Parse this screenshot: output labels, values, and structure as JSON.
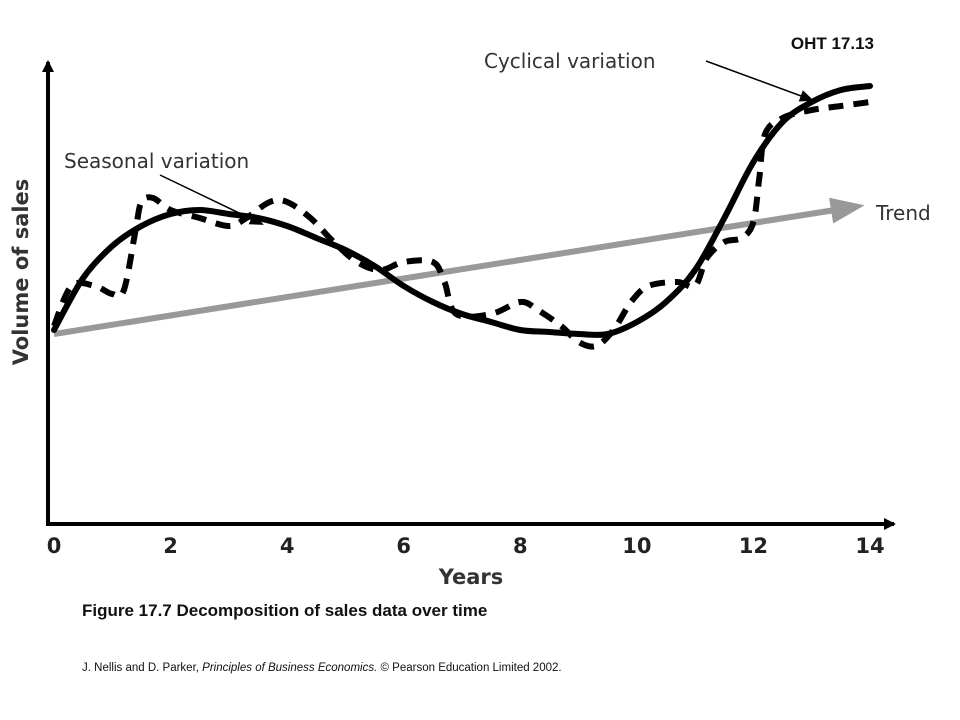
{
  "slide_id": "OHT 17.13",
  "caption": "Figure 17.7  Decomposition of sales data over time",
  "source": {
    "authors": "J. Nellis and D. Parker, ",
    "book": "Principles of Business Economics.",
    "copyright": "  © Pearson Education Limited 2002."
  },
  "chart_data": {
    "type": "line",
    "xlabel": "Years",
    "ylabel": "Volume of sales",
    "xlim": [
      0,
      14
    ],
    "ylim": [
      0,
      10
    ],
    "x_ticks": [
      "0",
      "2",
      "4",
      "6",
      "8",
      "10",
      "12",
      "14"
    ],
    "grid": false,
    "annotations": [
      {
        "text": "Cyclical variation",
        "target": "cyclical"
      },
      {
        "text": "Seasonal variation",
        "target": "seasonal"
      },
      {
        "text": "Trend",
        "target": "trend"
      }
    ],
    "series": [
      {
        "key": "trend",
        "color": "#999999",
        "style": "solid-arrow",
        "x": [
          0,
          13.4
        ],
        "y": [
          3.4,
          6.5
        ]
      },
      {
        "key": "cyclical",
        "color": "#000000",
        "style": "solid",
        "x": [
          0,
          0.5,
          1,
          1.5,
          2,
          2.5,
          3,
          3.5,
          4,
          4.5,
          5,
          5.5,
          6,
          6.5,
          7,
          7.5,
          8,
          8.5,
          9,
          9.5,
          10,
          10.5,
          11,
          11.5,
          12,
          12.5,
          13,
          13.5,
          14
        ],
        "y": [
          3.5,
          4.8,
          5.6,
          6.1,
          6.4,
          6.5,
          6.4,
          6.3,
          6.1,
          5.8,
          5.5,
          5.1,
          4.6,
          4.2,
          3.9,
          3.7,
          3.5,
          3.45,
          3.4,
          3.4,
          3.7,
          4.2,
          5.0,
          6.3,
          7.7,
          8.7,
          9.2,
          9.5,
          9.6
        ]
      },
      {
        "key": "seasonal",
        "color": "#000000",
        "style": "dashed",
        "x": [
          0,
          0.3,
          0.7,
          1,
          1.2,
          1.4,
          1.5,
          1.7,
          2,
          2.5,
          3,
          3.3,
          3.7,
          4,
          4.4,
          4.8,
          5.2,
          5.6,
          6,
          6.5,
          6.7,
          6.9,
          7.5,
          8,
          8.3,
          8.7,
          9,
          9.3,
          9.6,
          9.9,
          10.2,
          10.7,
          11,
          11.2,
          11.5,
          11.8,
          12,
          12.1,
          12.2,
          12.5,
          13,
          13.5,
          14
        ],
        "y": [
          3.6,
          4.6,
          4.6,
          4.4,
          4.5,
          6.0,
          6.7,
          6.8,
          6.5,
          6.3,
          6.1,
          6.3,
          6.7,
          6.7,
          6.3,
          5.7,
          5.2,
          5.0,
          5.2,
          5.2,
          4.7,
          3.9,
          3.9,
          4.2,
          4.0,
          3.6,
          3.2,
          3.1,
          3.5,
          4.2,
          4.6,
          4.7,
          4.6,
          5.3,
          5.7,
          5.8,
          6.2,
          7.3,
          8.4,
          8.8,
          9.0,
          9.1,
          9.2
        ]
      }
    ]
  }
}
